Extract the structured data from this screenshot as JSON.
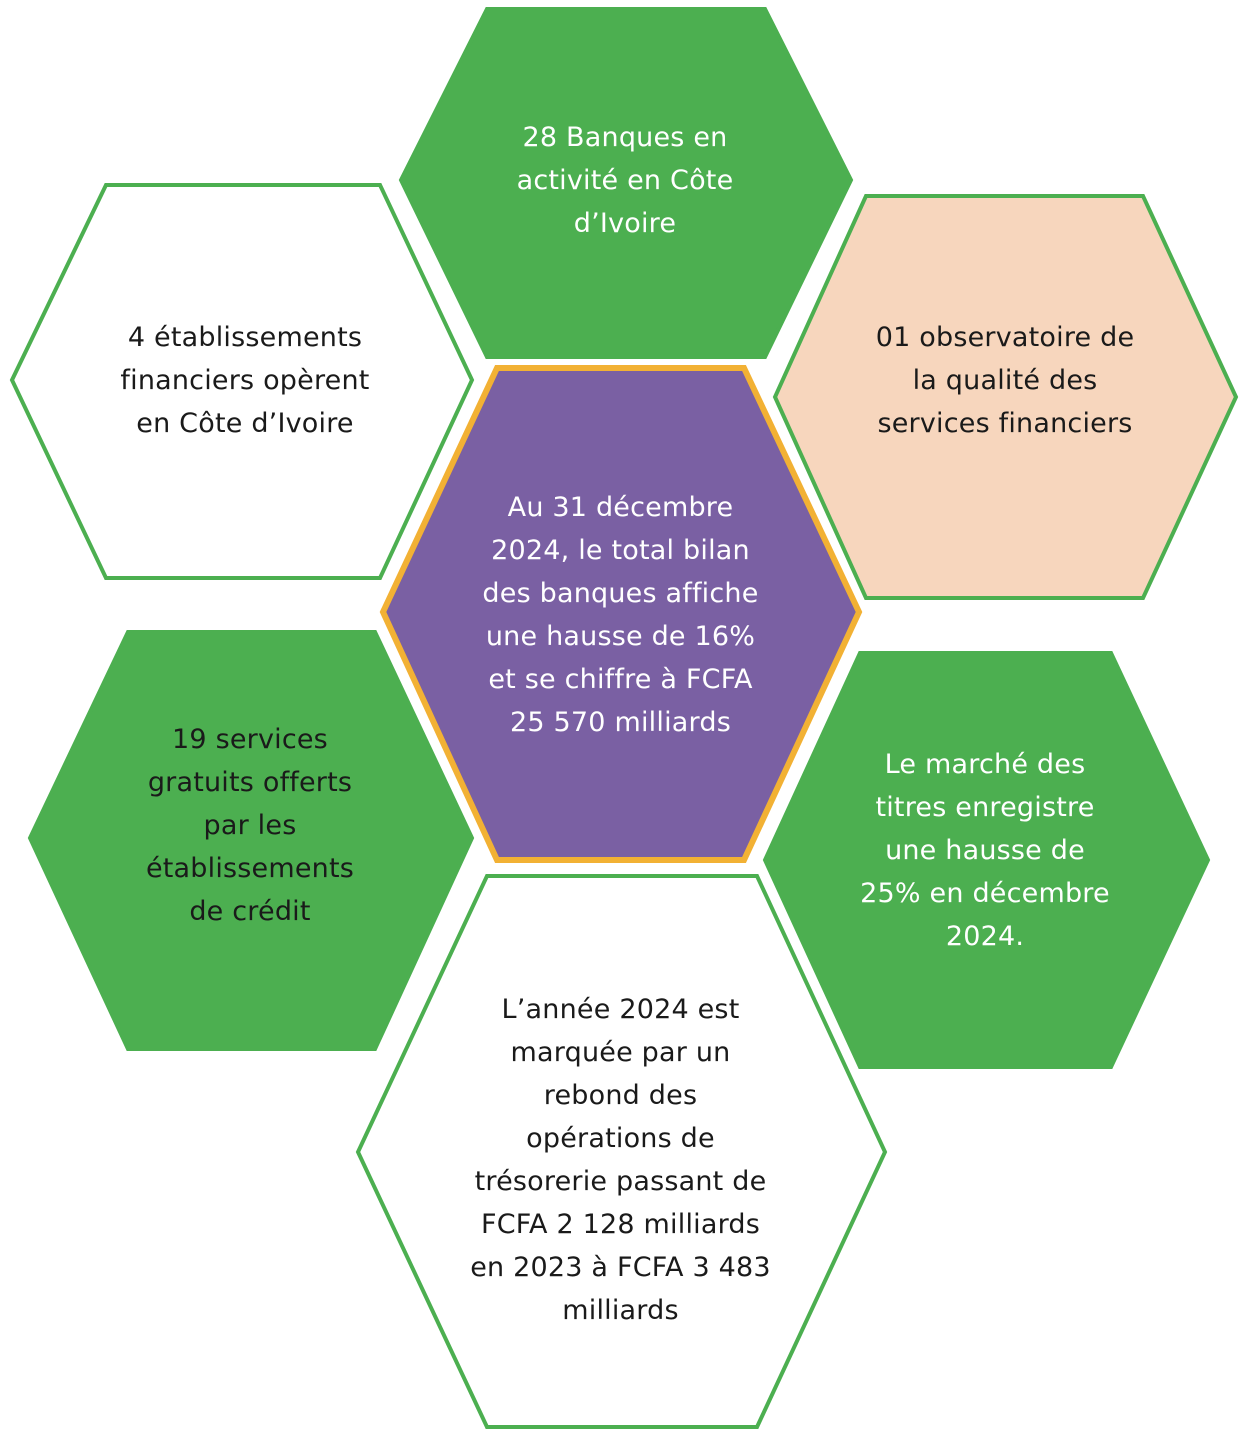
{
  "colors": {
    "green": "#4caf50",
    "green_border": "#4caf50",
    "peach": "#f7d6bd",
    "purple": "#7a60a3",
    "gold_border": "#f2b134",
    "white": "#ffffff",
    "text_dark": "#1a1a1a",
    "text_light": "#ffffff"
  },
  "hexagons": {
    "top": {
      "text": "28 Banques en activité en Côte d’Ivoire",
      "fill": "green",
      "text_color": "light"
    },
    "upper_left": {
      "text": "4 établissements financiers opèrent en Côte d’Ivoire",
      "fill": "white",
      "text_color": "dark"
    },
    "upper_right": {
      "text": "01 observatoire de la qualité des services financiers",
      "fill": "peach",
      "text_color": "dark"
    },
    "center": {
      "text": "Au 31 décembre 2024, le total bilan des banques affiche une hausse de 16% et se chiffre à FCFA 25 570 milliards",
      "fill": "purple",
      "text_color": "light"
    },
    "lower_left": {
      "text": "19 services gratuits offerts par les établissements de crédit",
      "fill": "green",
      "text_color": "dark"
    },
    "lower_right": {
      "text": "Le marché des titres enregistre une hausse de 25% en décembre 2024.",
      "fill": "green",
      "text_color": "light"
    },
    "bottom": {
      "text": "L’année 2024 est marquée par un rebond des opérations de trésorerie passant de FCFA 2 128 milliards en 2023 à FCFA 3 483 milliards",
      "fill": "white",
      "text_color": "dark"
    }
  }
}
